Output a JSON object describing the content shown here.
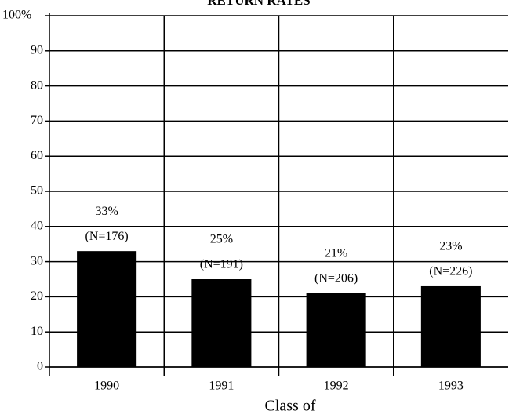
{
  "chart_data": {
    "type": "bar",
    "title": "RETURN RATES",
    "x_label": "Class of",
    "categories": [
      "1990",
      "1991",
      "1992",
      "1993"
    ],
    "values": [
      33,
      25,
      21,
      23
    ],
    "value_labels": [
      "33%",
      "25%",
      "21%",
      "23%"
    ],
    "annotations": [
      "(N=176)",
      "(N=191)",
      "(N=206)",
      "(N=226)"
    ],
    "color": "#000000",
    "ylim": [
      0,
      100
    ],
    "yticks": [
      0,
      10,
      20,
      30,
      40,
      50,
      60,
      70,
      80,
      90,
      {
        "value": 100,
        "label": "100%"
      }
    ],
    "grid": true
  }
}
